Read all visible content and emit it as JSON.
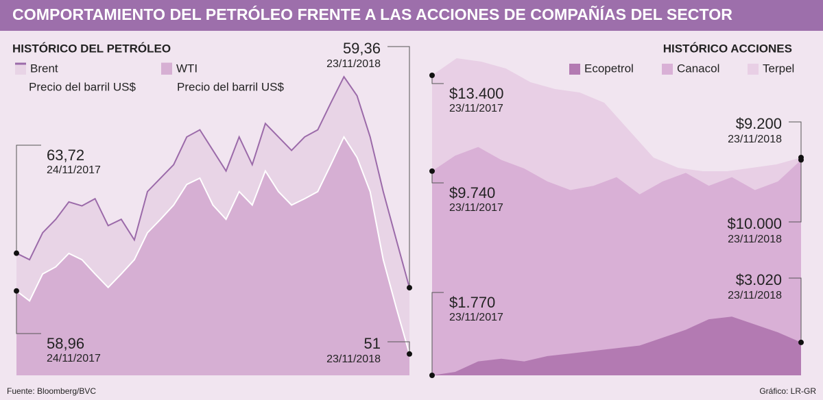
{
  "title": "COMPORTAMIENTO DEL PETRÓLEO FRENTE A LAS ACCIONES DE COMPAÑÍAS DEL SECTOR",
  "chart_data": [
    {
      "type": "area",
      "title": "HISTÓRICO DEL  PETRÓLEO",
      "ylim": [
        48.3,
        90.5
      ],
      "series": [
        {
          "name": "Brent",
          "unit": "Precio del barril US$",
          "color": "#9b6aa9",
          "fill": "#e8d4e6",
          "values": [
            63.72,
            62.9,
            66.3,
            68.0,
            70.2,
            69.7,
            70.6,
            67.2,
            68.0,
            65.4,
            71.5,
            73.2,
            74.9,
            78.4,
            79.3,
            76.7,
            74.1,
            78.4,
            74.9,
            80.1,
            78.4,
            76.7,
            78.4,
            79.3,
            82.7,
            86.0,
            83.6,
            78.4,
            71.5,
            65.4,
            59.36
          ],
          "start": {
            "label": "63,72",
            "date": "24/11/2017"
          },
          "end": {
            "label": "59,36",
            "date": "23/11/2018"
          }
        },
        {
          "name": "WTI",
          "unit": "Precio del barril US$",
          "color": "#ffffff",
          "fill": "#d6afd3",
          "values": [
            58.96,
            57.7,
            61.1,
            62.0,
            63.7,
            62.9,
            61.1,
            59.4,
            61.1,
            62.9,
            66.3,
            68.0,
            69.8,
            72.4,
            73.2,
            69.8,
            68.0,
            71.5,
            69.8,
            74.1,
            71.5,
            69.8,
            70.6,
            71.5,
            74.9,
            78.4,
            75.8,
            71.5,
            62.9,
            56.8,
            51
          ],
          "start": {
            "label": "58,96",
            "date": "24/11/2017"
          },
          "end": {
            "label": "51",
            "date": "23/11/2018"
          }
        }
      ]
    },
    {
      "type": "area",
      "title": "HISTÓRICO ACCIONES",
      "series": [
        {
          "name": "Ecopetrol",
          "color": "#b37ab2",
          "ylim": [
            1770,
            13938
          ],
          "values": [
            1770,
            1900,
            2300,
            2400,
            2300,
            2500,
            2600,
            2700,
            2800,
            2900,
            3200,
            3500,
            3900,
            4000,
            3700,
            3400,
            3020
          ],
          "start": {
            "label": "$1.770",
            "date": "23/11/2017"
          },
          "end": {
            "label": "$3.020",
            "date": "23/11/2018"
          }
        },
        {
          "name": "Canacol",
          "color": "#d9b0d6",
          "ylim": [
            5000,
            12440
          ],
          "values": [
            9740,
            10100,
            10300,
            10000,
            9800,
            9500,
            9300,
            9400,
            9600,
            9200,
            9500,
            9700,
            9400,
            9600,
            9300,
            9500,
            10000
          ],
          "start": {
            "label": "$9.740",
            "date": "23/11/2017"
          },
          "end": {
            "label": "$10.000",
            "date": "23/11/2018"
          }
        },
        {
          "name": "Terpel",
          "color": "#e8cfe5",
          "ylim": [
            -1930,
            14450
          ],
          "values": [
            13400,
            14275,
            14100,
            13750,
            13050,
            12700,
            12525,
            12000,
            10600,
            9200,
            8675,
            8500,
            8500,
            8675,
            8850,
            9200
          ],
          "start": {
            "label": "$13.400",
            "date": "23/11/2017"
          },
          "end": {
            "label": "$9.200",
            "date": "23/11/2018"
          }
        }
      ]
    }
  ],
  "footer": {
    "source": "Fuente: Bloomberg/BVC",
    "credit": "Gráfico: LR-GR"
  }
}
